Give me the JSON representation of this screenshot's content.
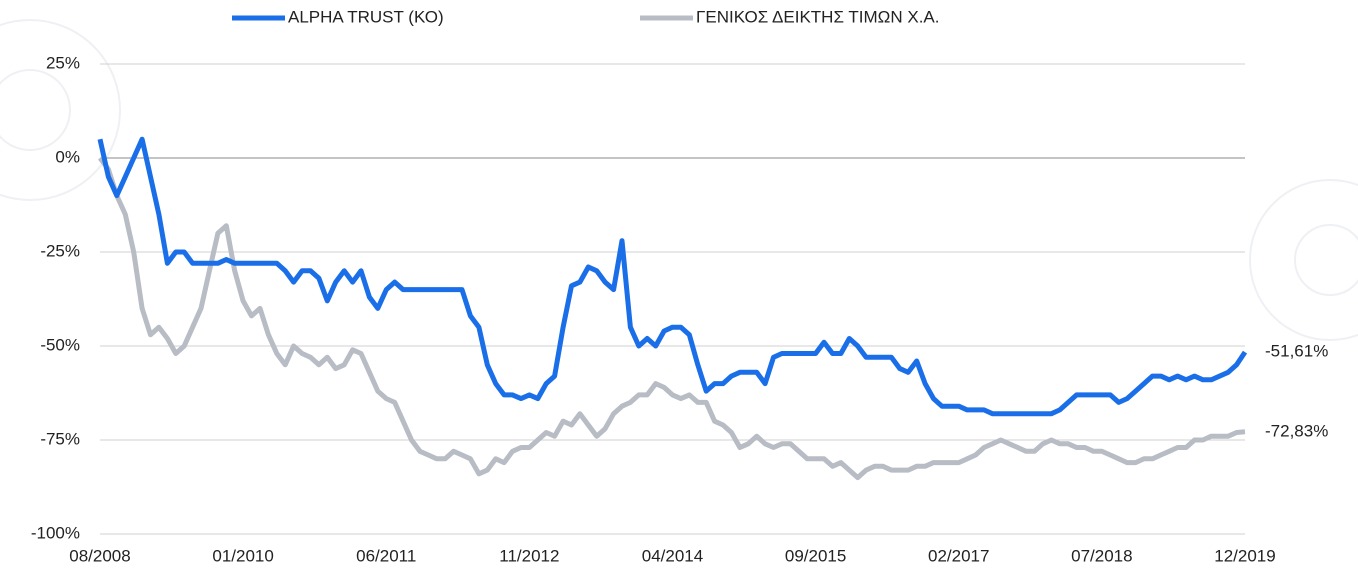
{
  "chart_data": {
    "type": "line",
    "x": [
      "08/2008",
      "09/2008",
      "10/2008",
      "11/2008",
      "12/2008",
      "01/2009",
      "02/2009",
      "03/2009",
      "04/2009",
      "05/2009",
      "06/2009",
      "07/2009",
      "08/2009",
      "09/2009",
      "10/2009",
      "11/2009",
      "12/2009",
      "01/2010",
      "02/2010",
      "03/2010",
      "04/2010",
      "05/2010",
      "06/2010",
      "07/2010",
      "08/2010",
      "09/2010",
      "10/2010",
      "11/2010",
      "12/2010",
      "01/2011",
      "02/2011",
      "03/2011",
      "04/2011",
      "05/2011",
      "06/2011",
      "07/2011",
      "08/2011",
      "09/2011",
      "10/2011",
      "11/2011",
      "12/2011",
      "01/2012",
      "02/2012",
      "03/2012",
      "04/2012",
      "05/2012",
      "06/2012",
      "07/2012",
      "08/2012",
      "09/2012",
      "10/2012",
      "11/2012",
      "12/2012",
      "01/2013",
      "02/2013",
      "03/2013",
      "04/2013",
      "05/2013",
      "06/2013",
      "07/2013",
      "08/2013",
      "09/2013",
      "10/2013",
      "11/2013",
      "12/2013",
      "01/2014",
      "02/2014",
      "03/2014",
      "04/2014",
      "05/2014",
      "06/2014",
      "07/2014",
      "08/2014",
      "09/2014",
      "10/2014",
      "11/2014",
      "12/2014",
      "01/2015",
      "02/2015",
      "03/2015",
      "04/2015",
      "05/2015",
      "06/2015",
      "07/2015",
      "08/2015",
      "09/2015",
      "10/2015",
      "11/2015",
      "12/2015",
      "01/2016",
      "02/2016",
      "03/2016",
      "04/2016",
      "05/2016",
      "06/2016",
      "07/2016",
      "08/2016",
      "09/2016",
      "10/2016",
      "11/2016",
      "12/2016",
      "01/2017",
      "02/2017",
      "03/2017",
      "04/2017",
      "05/2017",
      "06/2017",
      "07/2017",
      "08/2017",
      "09/2017",
      "10/2017",
      "11/2017",
      "12/2017",
      "01/2018",
      "02/2018",
      "03/2018",
      "04/2018",
      "05/2018",
      "06/2018",
      "07/2018",
      "08/2018",
      "09/2018",
      "10/2018",
      "11/2018",
      "12/2018",
      "01/2019",
      "02/2019",
      "03/2019",
      "04/2019",
      "05/2019",
      "06/2019",
      "07/2019",
      "08/2019",
      "09/2019",
      "10/2019",
      "11/2019",
      "12/2019"
    ],
    "series": [
      {
        "name": "ALPHA TRUST (ΚΟ)",
        "color": "#1a6fe8",
        "values": [
          5,
          -5,
          -10,
          -5,
          0,
          5,
          -5,
          -15,
          -28,
          -25,
          -25,
          -28,
          -28,
          -28,
          -28,
          -27,
          -28,
          -28,
          -28,
          -28,
          -28,
          -28,
          -30,
          -33,
          -30,
          -30,
          -32,
          -38,
          -33,
          -30,
          -33,
          -30,
          -37,
          -40,
          -35,
          -33,
          -35,
          -35,
          -35,
          -35,
          -35,
          -35,
          -35,
          -35,
          -42,
          -45,
          -55,
          -60,
          -63,
          -63,
          -64,
          -63,
          -64,
          -60,
          -58,
          -45,
          -34,
          -33,
          -29,
          -30,
          -33,
          -35,
          -22,
          -45,
          -50,
          -48,
          -50,
          -46,
          -45,
          -45,
          -47,
          -55,
          -62,
          -60,
          -60,
          -58,
          -57,
          -57,
          -57,
          -60,
          -53,
          -52,
          -52,
          -52,
          -52,
          -52,
          -49,
          -52,
          -52,
          -48,
          -50,
          -53,
          -53,
          -53,
          -53,
          -56,
          -57,
          -54,
          -60,
          -64,
          -66,
          -66,
          -66,
          -67,
          -67,
          -67,
          -68,
          -68,
          -68,
          -68,
          -68,
          -68,
          -68,
          -68,
          -67,
          -65,
          -63,
          -63,
          -63,
          -63,
          -63,
          -65,
          -64,
          -62,
          -60,
          -58,
          -58,
          -59,
          -58,
          -59,
          -58,
          -59,
          -59,
          -58,
          -57,
          -55,
          -51.61
        ],
        "end_label": {
          "value": -51.61,
          "label": "-51,61%"
        }
      },
      {
        "name": "ΓΕΝΙΚΟΣ ΔΕΙΚΤΗΣ ΤΙΜΩΝ Χ.Α.",
        "color": "#b8bcc4",
        "values": [
          0,
          -3,
          -10,
          -15,
          -25,
          -40,
          -47,
          -45,
          -48,
          -52,
          -50,
          -45,
          -40,
          -30,
          -20,
          -18,
          -30,
          -38,
          -42,
          -40,
          -47,
          -52,
          -55,
          -50,
          -52,
          -53,
          -55,
          -53,
          -56,
          -55,
          -51,
          -52,
          -57,
          -62,
          -64,
          -65,
          -70,
          -75,
          -78,
          -79,
          -80,
          -80,
          -78,
          -79,
          -80,
          -84,
          -83,
          -80,
          -81,
          -78,
          -77,
          -77,
          -75,
          -73,
          -74,
          -70,
          -71,
          -68,
          -71,
          -74,
          -72,
          -68,
          -66,
          -65,
          -63,
          -63,
          -60,
          -61,
          -63,
          -64,
          -63,
          -65,
          -65,
          -70,
          -71,
          -73,
          -77,
          -76,
          -74,
          -76,
          -77,
          -76,
          -76,
          -78,
          -80,
          -80,
          -80,
          -82,
          -81,
          -83,
          -85,
          -83,
          -82,
          -82,
          -83,
          -83,
          -83,
          -82,
          -82,
          -81,
          -81,
          -81,
          -81,
          -80,
          -79,
          -77,
          -76,
          -75,
          -76,
          -77,
          -78,
          -78,
          -76,
          -75,
          -76,
          -76,
          -77,
          -77,
          -78,
          -78,
          -79,
          -80,
          -81,
          -81,
          -80,
          -80,
          -79,
          -78,
          -77,
          -77,
          -75,
          -75,
          -74,
          -74,
          -74,
          -73,
          -72.83
        ],
        "end_label": {
          "value": -72.83,
          "label": "-72,83%"
        }
      }
    ],
    "ylim": [
      -100,
      25
    ],
    "yticks": [
      {
        "value": -100,
        "label": "-100%"
      },
      {
        "value": -75,
        "label": "-75%"
      },
      {
        "value": -50,
        "label": "-50%"
      },
      {
        "value": -25,
        "label": "-25%"
      },
      {
        "value": 0,
        "label": "0%"
      },
      {
        "value": 25,
        "label": "25%"
      }
    ],
    "xticks": [
      "08/2008",
      "01/2010",
      "06/2011",
      "11/2012",
      "04/2014",
      "09/2015",
      "02/2017",
      "07/2018",
      "12/2019"
    ],
    "grid": true,
    "legend": "top"
  }
}
